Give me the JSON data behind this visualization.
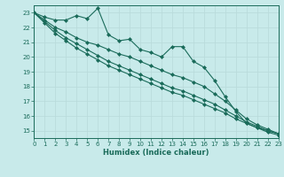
{
  "xlabel": "Humidex (Indice chaleur)",
  "background_color": "#c8eaea",
  "grid_color": "#b8dada",
  "line_color": "#1a6b5a",
  "x_values": [
    0,
    1,
    2,
    3,
    4,
    5,
    6,
    7,
    8,
    9,
    10,
    11,
    12,
    13,
    14,
    15,
    16,
    17,
    18,
    19,
    20,
    21,
    22,
    23
  ],
  "series": [
    [
      23.0,
      22.7,
      22.5,
      22.5,
      22.8,
      22.6,
      23.3,
      21.5,
      21.1,
      21.2,
      20.5,
      20.3,
      20.0,
      20.7,
      20.7,
      19.7,
      19.3,
      18.4,
      17.3,
      16.3,
      15.5,
      15.2,
      15.0,
      14.8
    ],
    [
      23.0,
      22.5,
      22.0,
      21.7,
      21.3,
      21.0,
      20.8,
      20.5,
      20.2,
      20.0,
      19.7,
      19.4,
      19.1,
      18.8,
      18.6,
      18.3,
      18.0,
      17.5,
      17.0,
      16.4,
      15.8,
      15.4,
      15.1,
      14.8
    ],
    [
      23.0,
      22.4,
      21.8,
      21.3,
      20.9,
      20.5,
      20.1,
      19.7,
      19.4,
      19.1,
      18.8,
      18.5,
      18.2,
      17.9,
      17.7,
      17.4,
      17.1,
      16.8,
      16.4,
      16.0,
      15.6,
      15.3,
      15.0,
      14.8
    ],
    [
      23.0,
      22.3,
      21.6,
      21.1,
      20.6,
      20.2,
      19.8,
      19.4,
      19.1,
      18.8,
      18.5,
      18.2,
      17.9,
      17.6,
      17.4,
      17.1,
      16.8,
      16.5,
      16.2,
      15.8,
      15.5,
      15.2,
      14.9,
      14.7
    ]
  ],
  "xlim": [
    0,
    23
  ],
  "ylim": [
    14.5,
    23.5
  ],
  "yticks": [
    15,
    16,
    17,
    18,
    19,
    20,
    21,
    22,
    23
  ],
  "xticks": [
    0,
    1,
    2,
    3,
    4,
    5,
    6,
    7,
    8,
    9,
    10,
    11,
    12,
    13,
    14,
    15,
    16,
    17,
    18,
    19,
    20,
    21,
    22,
    23
  ],
  "marker": "D",
  "marker_size": 2.0,
  "linewidth": 0.8,
  "axis_fontsize": 6,
  "tick_fontsize": 5
}
